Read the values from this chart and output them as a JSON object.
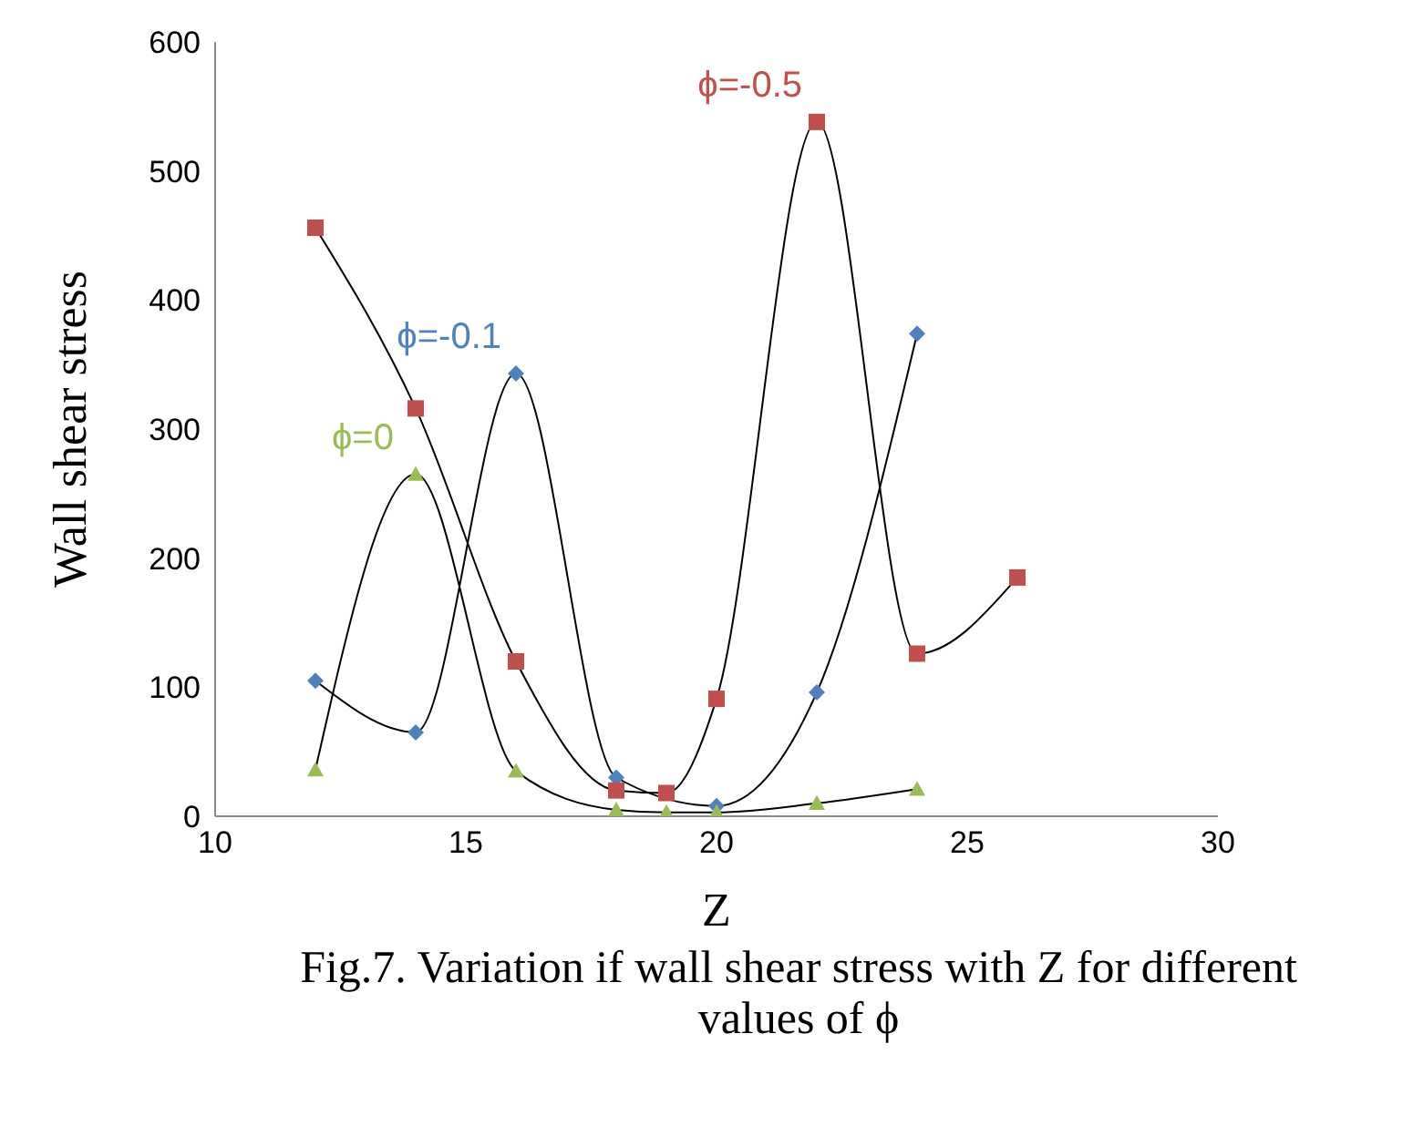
{
  "chart_data": {
    "type": "line",
    "title": "Fig.7. Variation if wall shear stress with Z for different values of ϕ",
    "xlabel": "Z",
    "ylabel": "Wall shear stress",
    "xlim": [
      10,
      30
    ],
    "xticks": [
      10,
      15,
      20,
      25,
      30
    ],
    "ylim": [
      0,
      600
    ],
    "yticks": [
      0,
      100,
      200,
      300,
      400,
      500,
      600
    ],
    "grid": false,
    "legend": false,
    "series": [
      {
        "name": "ϕ=-0.1",
        "color": "#4f81bd",
        "marker": "diamond",
        "x": [
          12,
          14,
          16,
          18,
          20,
          22,
          24
        ],
        "values": [
          105,
          65,
          343,
          30,
          8,
          96,
          374
        ]
      },
      {
        "name": "ϕ=-0.5",
        "color": "#c0504d",
        "marker": "square",
        "x": [
          12,
          14,
          16,
          18,
          19,
          20,
          22,
          24,
          26
        ],
        "values": [
          456,
          316,
          120,
          20,
          18,
          91,
          538,
          126,
          185
        ]
      },
      {
        "name": "ϕ=0",
        "color": "#9bbb59",
        "marker": "triangle",
        "x": [
          12,
          14,
          16,
          18,
          19,
          20,
          22,
          24
        ],
        "values": [
          36,
          265,
          35,
          5,
          3,
          3,
          10,
          21
        ]
      }
    ]
  }
}
